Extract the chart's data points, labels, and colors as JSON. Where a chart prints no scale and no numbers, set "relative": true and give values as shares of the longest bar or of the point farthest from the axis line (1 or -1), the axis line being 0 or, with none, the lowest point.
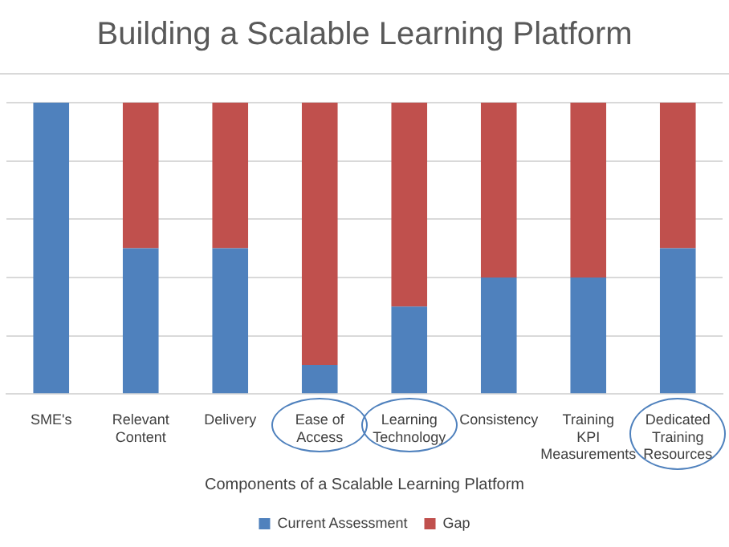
{
  "chart_data": {
    "type": "bar",
    "title": "Building a Scalable Learning Platform",
    "xlabel": "Components of a Scalable Learning Platform",
    "relative": true,
    "stacked": true,
    "grid": "y",
    "legend": "bottom",
    "categories": [
      "SME's",
      "Relevant Content",
      "Delivery",
      "Ease of Access",
      "Learning Technology",
      "Consistency",
      "Training KPI Measurements",
      "Dedicated Training Resources"
    ],
    "series": [
      {
        "name": "Current Assessment",
        "color": "#4f81bd",
        "values": [
          1,
          0.5,
          0.5,
          0.1,
          0.3,
          0.4,
          0.4,
          0.5
        ]
      },
      {
        "name": "Gap",
        "color": "#c0504d",
        "values": [
          0,
          0.5,
          0.5,
          0.9,
          0.7,
          0.6,
          0.6,
          0.5
        ]
      }
    ]
  }
}
